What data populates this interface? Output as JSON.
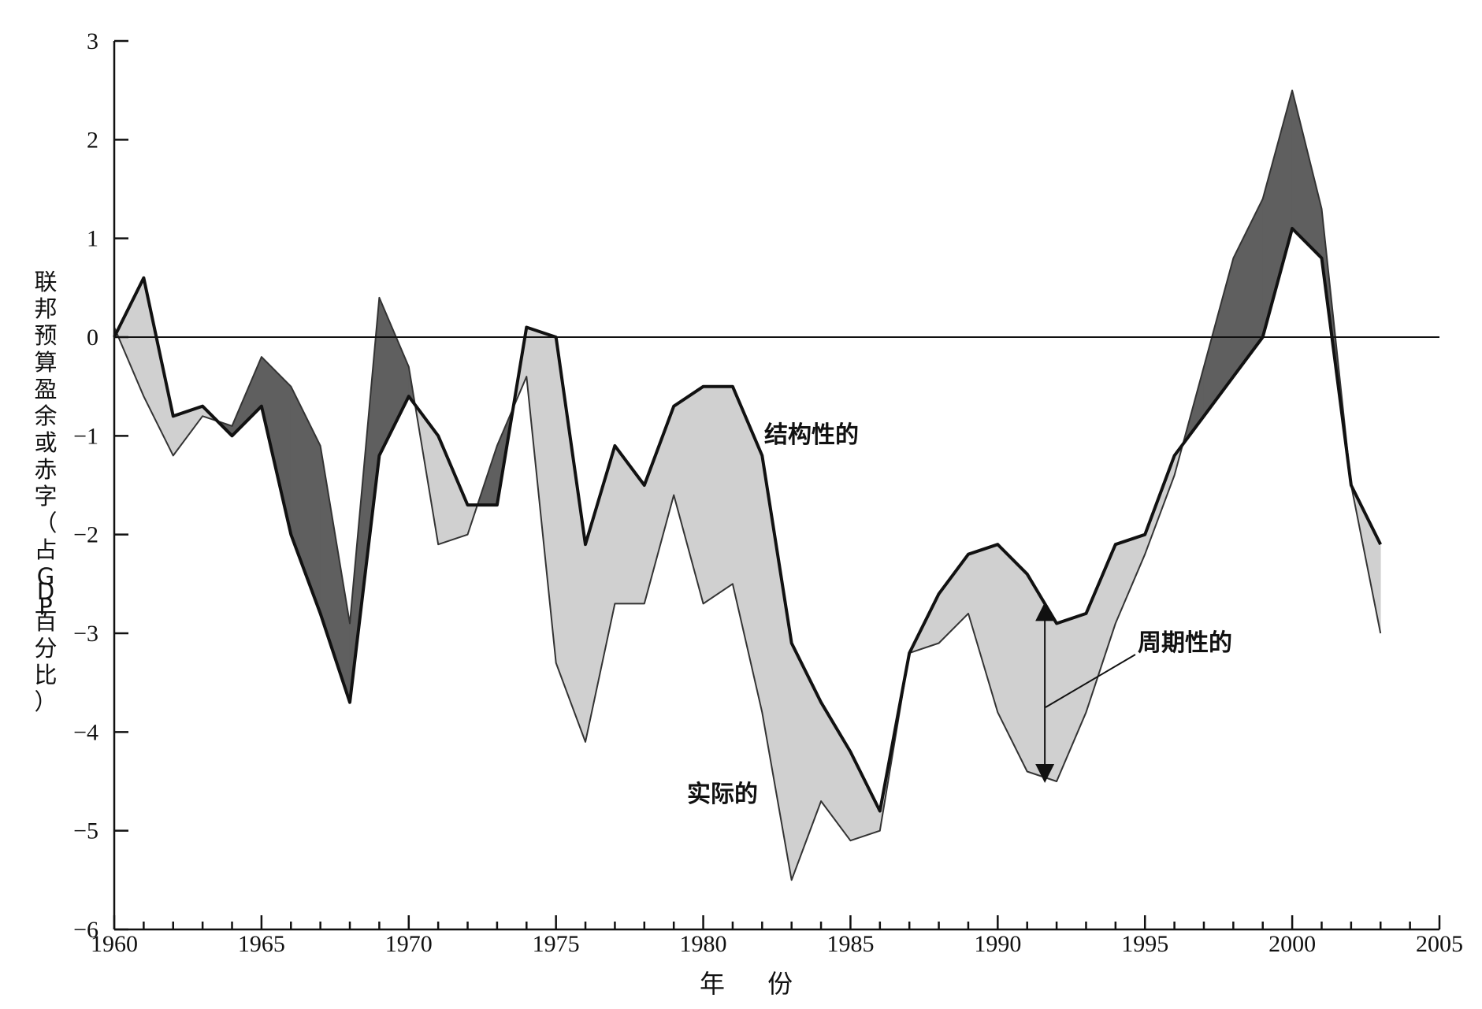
{
  "chart_data": {
    "type": "area",
    "xlabel": "年 份",
    "ylabel": "联邦预算盈余或赤字（占GDP百分比）",
    "xlim": [
      1960,
      2005
    ],
    "ylim": [
      -6,
      3
    ],
    "xticks": [
      "1960",
      "1965",
      "1970",
      "1975",
      "1980",
      "1985",
      "1990",
      "1995",
      "2000",
      "2005"
    ],
    "yticks": [
      "3",
      "2",
      "1",
      "0",
      "-1",
      "-2",
      "-3",
      "-4",
      "-5",
      "-6"
    ],
    "x": [
      1960,
      1961,
      1962,
      1963,
      1964,
      1965,
      1966,
      1967,
      1968,
      1969,
      1970,
      1971,
      1972,
      1973,
      1974,
      1975,
      1976,
      1977,
      1978,
      1979,
      1980,
      1981,
      1982,
      1983,
      1984,
      1985,
      1986,
      1987,
      1988,
      1989,
      1990,
      1991,
      1992,
      1993,
      1994,
      1995,
      1996,
      1997,
      1998,
      1999,
      2000,
      2001,
      2002,
      2003
    ],
    "series": [
      {
        "name": "结构性的",
        "values": [
          0.0,
          0.6,
          -0.8,
          -0.7,
          -1.0,
          -0.7,
          -2.0,
          -2.8,
          -3.7,
          -1.2,
          -0.6,
          -1.0,
          -1.7,
          -1.7,
          0.1,
          0.0,
          -2.1,
          -1.1,
          -1.5,
          -0.7,
          -0.5,
          -0.5,
          -1.2,
          -3.1,
          -3.7,
          -4.2,
          -4.8,
          -3.2,
          -2.6,
          -2.2,
          -2.1,
          -2.4,
          -2.9,
          -2.8,
          -2.1,
          -2.0,
          -1.2,
          -0.8,
          -0.4,
          0.0,
          1.1,
          0.8,
          -1.5,
          -2.1
        ]
      },
      {
        "name": "实际的",
        "values": [
          0.1,
          -0.6,
          -1.2,
          -0.8,
          -0.9,
          -0.2,
          -0.5,
          -1.1,
          -2.9,
          0.4,
          -0.3,
          -2.1,
          -2.0,
          -1.1,
          -0.4,
          -3.3,
          -4.1,
          -2.7,
          -2.7,
          -1.6,
          -2.7,
          -2.5,
          -3.8,
          -5.5,
          -4.7,
          -5.1,
          -5.0,
          -3.2,
          -3.1,
          -2.8,
          -3.8,
          -4.4,
          -4.5,
          -3.8,
          -2.9,
          -2.2,
          -1.4,
          -0.3,
          0.8,
          1.4,
          2.5,
          1.3,
          -1.5,
          -3.0
        ]
      }
    ],
    "annotations": {
      "structural": "结构性的",
      "actual": "实际的",
      "cyclical": "周期性的"
    },
    "fill_colors": {
      "surplus_structural_above": "#5f5f5f",
      "deficit_structural_above": "#d0d0d0"
    },
    "grid": false,
    "legend": "none"
  }
}
